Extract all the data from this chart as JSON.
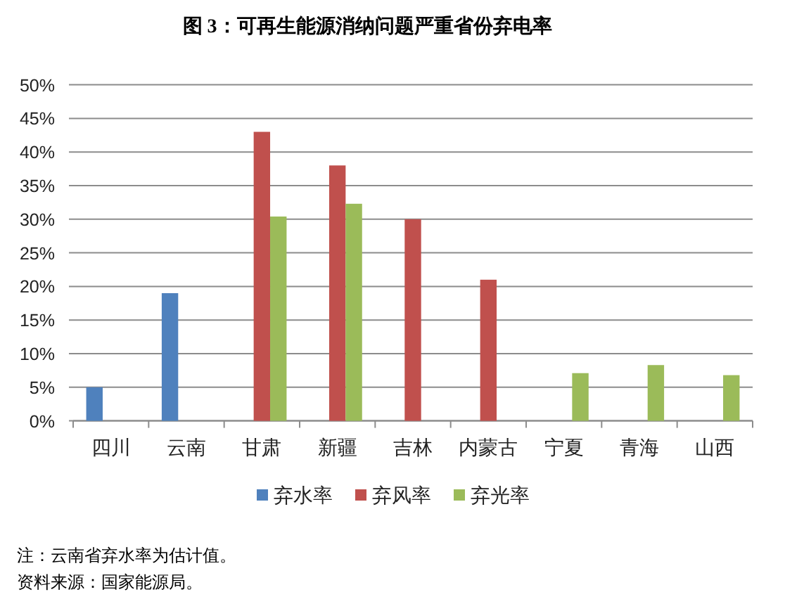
{
  "chart_data": {
    "type": "bar",
    "title": "图 3：可再生能源消纳问题严重省份弃电率",
    "categories": [
      "四川",
      "云南",
      "甘肃",
      "新疆",
      "吉林",
      "内蒙古",
      "宁夏",
      "青海",
      "山西"
    ],
    "series": [
      {
        "name": "弃水率",
        "color": "#4f81bd",
        "values": [
          5,
          19,
          null,
          null,
          null,
          null,
          null,
          null,
          null
        ]
      },
      {
        "name": "弃风率",
        "color": "#c0504d",
        "values": [
          null,
          null,
          43,
          38,
          30,
          21,
          null,
          null,
          null
        ]
      },
      {
        "name": "弃光率",
        "color": "#9bbb59",
        "values": [
          null,
          null,
          30.4,
          32.3,
          null,
          null,
          7.1,
          8.3,
          6.8
        ]
      }
    ],
    "ylim": [
      0,
      50
    ],
    "yticks": [
      {
        "value": 0,
        "label": "0%"
      },
      {
        "value": 5,
        "label": "5%"
      },
      {
        "value": 10,
        "label": "10%"
      },
      {
        "value": 15,
        "label": "15%"
      },
      {
        "value": 20,
        "label": "20%"
      },
      {
        "value": 25,
        "label": "25%"
      },
      {
        "value": 30,
        "label": "30%"
      },
      {
        "value": 35,
        "label": "35%"
      },
      {
        "value": 40,
        "label": "40%"
      },
      {
        "value": 45,
        "label": "45%"
      },
      {
        "value": 50,
        "label": "50%"
      }
    ],
    "grid": "y",
    "legend": "bottom",
    "annotations": [
      "注：云南省弃水率为估计值。",
      "资料来源：国家能源局。"
    ]
  }
}
